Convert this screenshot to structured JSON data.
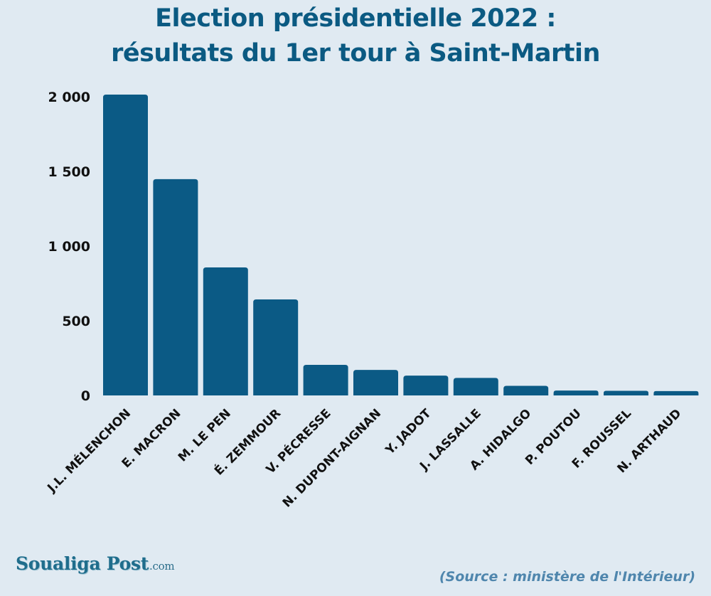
{
  "colors": {
    "background": "#e0eaf2",
    "bar": "#0b5a85",
    "title": "#0b5a82",
    "source": "#4f86ad",
    "logo": "#1f6d8c"
  },
  "footer": {
    "logo_text": "Soualiga Post",
    "logo_suffix": ".com",
    "source": "(Source : ministère de l'Intérieur)"
  },
  "chart_data": {
    "type": "bar",
    "title_lines": [
      "Election présidentielle 2022 :",
      "résultats du 1er tour  à Saint-Martin"
    ],
    "title": "Election présidentielle 2022 : résultats du 1er tour  à Saint-Martin",
    "xlabel": "",
    "ylabel": "",
    "categories": [
      "J.L. MÉLENCHON",
      "E. MACRON",
      "M. LE PEN",
      "É. ZEMMOUR",
      "V. PÉCRESSE",
      "N. DUPONT-AIGNAN",
      "Y. JADOT",
      "J. LASSALLE",
      "A. HIDALGO",
      "P. POUTOU",
      "F. ROUSSEL",
      "N. ARTHAUD"
    ],
    "values": [
      2014,
      1448,
      857,
      643,
      205,
      171,
      133,
      117,
      64,
      33,
      31,
      29
    ],
    "ylim": [
      0,
      2000
    ],
    "yticks": [
      0,
      500,
      1000,
      1500,
      2000
    ],
    "ytick_labels": [
      "0",
      "500",
      "1 000",
      "1 500",
      "2 000"
    ],
    "grid": false,
    "legend": "none",
    "xtick_rotation_deg": -45
  }
}
